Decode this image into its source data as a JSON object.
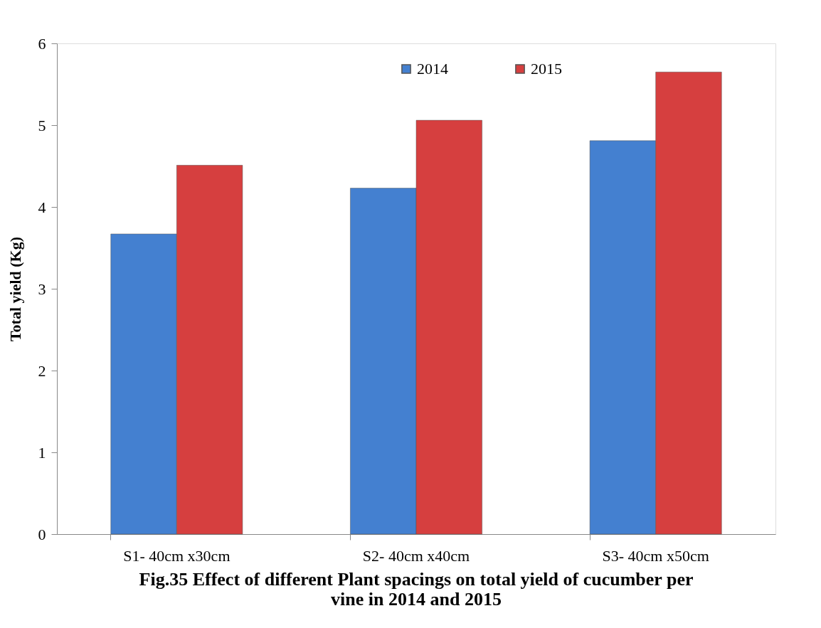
{
  "chart_data": {
    "type": "bar",
    "title": "Fig.35 Effect of different Plant spacings on total yield of cucumber per\nvine in 2014 and 2015",
    "ylabel": "Total yield (Kg)",
    "categories": [
      "S1- 40cm x30cm",
      "S2- 40cm x40cm",
      "S3- 40cm x50cm"
    ],
    "series": [
      {
        "name": "2014",
        "color": "#4480d0",
        "values": [
          3.67,
          4.23,
          4.81
        ]
      },
      {
        "name": "2015",
        "color": "#d63f3f",
        "values": [
          4.51,
          5.06,
          5.65
        ]
      }
    ],
    "ylim": [
      0,
      6
    ],
    "yticks": [
      0,
      1,
      2,
      3,
      4,
      5,
      6
    ],
    "grid": false,
    "legend": "top"
  }
}
